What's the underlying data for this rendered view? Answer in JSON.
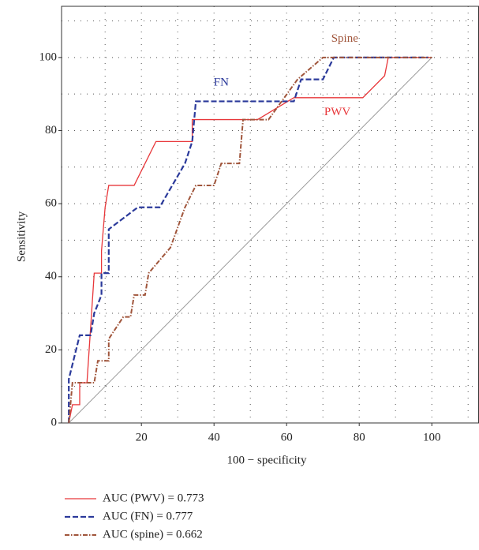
{
  "chart_data": {
    "type": "line",
    "xlabel": "100 − specificity",
    "ylabel": "Sensitivity",
    "xlim": [
      -2,
      113
    ],
    "ylim": [
      0,
      114
    ],
    "xticks": [
      20,
      40,
      60,
      80,
      100
    ],
    "yticks": [
      0,
      20,
      40,
      60,
      80,
      100
    ],
    "x_minor_ticks": [
      10,
      30,
      50,
      70,
      90,
      110
    ],
    "y_minor_ticks": [
      10,
      30,
      50,
      70,
      90,
      110
    ],
    "grid": true,
    "reference_line": {
      "x": [
        0,
        100
      ],
      "values": [
        0,
        100
      ],
      "color": "#9a9a9a"
    },
    "series": [
      {
        "name": "AUC (PWV) = 0.773",
        "color": "#e8373a",
        "style": "solid",
        "x": [
          0,
          1,
          3,
          3,
          5,
          7,
          9,
          9,
          10,
          11,
          18,
          24,
          34,
          34,
          52,
          62,
          81,
          87,
          88,
          100
        ],
        "values": [
          0,
          5,
          5,
          11,
          11,
          41,
          41,
          47,
          59,
          65,
          65,
          77,
          77,
          83,
          83,
          89,
          89,
          95,
          100,
          100
        ]
      },
      {
        "name": "AUC (FN) = 0.777",
        "color": "#2b3a9b",
        "style": "dashed",
        "x": [
          0,
          0,
          3,
          6,
          7,
          9,
          9,
          11,
          11,
          19,
          25,
          32,
          34,
          35,
          62,
          64,
          70,
          73,
          99
        ],
        "values": [
          0,
          12,
          24,
          24,
          30,
          35,
          41,
          41,
          53,
          59,
          59,
          71,
          77,
          88,
          88,
          94,
          94,
          100,
          100
        ]
      },
      {
        "name": "AUC (spine) = 0.662",
        "color": "#a0553b",
        "style": "dashdot",
        "x": [
          0,
          1,
          7,
          8,
          11,
          11,
          15,
          17,
          18,
          21,
          22,
          28,
          32,
          35,
          40,
          42,
          47,
          48,
          55,
          63,
          70,
          100
        ],
        "values": [
          0,
          11,
          11,
          17,
          17,
          23,
          29,
          29,
          35,
          35,
          41,
          48,
          59,
          65,
          65,
          71,
          71,
          83,
          83,
          94,
          100,
          100
        ]
      }
    ],
    "annotations": [
      {
        "text": "Spine",
        "x": 76,
        "y": 105,
        "color": "#a0553b"
      },
      {
        "text": "FN",
        "x": 42,
        "y": 93,
        "color": "#2b3a9b"
      },
      {
        "text": "PWV",
        "x": 74,
        "y": 85,
        "color": "#e8373a"
      }
    ]
  }
}
